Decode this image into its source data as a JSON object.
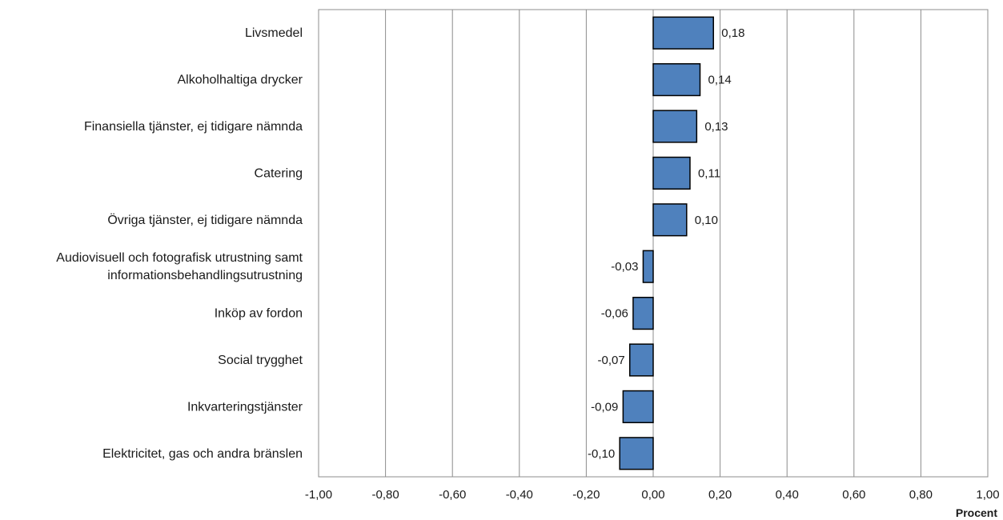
{
  "chart_data": {
    "type": "bar",
    "orientation": "horizontal",
    "categories": [
      "Livsmedel",
      "Alkoholhaltiga drycker",
      "Finansiella tjänster, ej tidigare nämnda",
      "Catering",
      "Övriga tjänster, ej tidigare nämnda",
      "Audiovisuell och fotografisk utrustning samt informationsbehandlingsutrustning",
      "Inköp av fordon",
      "Social trygghet",
      "Inkvarteringstjänster",
      "Elektricitet, gas och andra bränslen"
    ],
    "category_lines": [
      [
        "Livsmedel"
      ],
      [
        "Alkoholhaltiga drycker"
      ],
      [
        "Finansiella tjänster, ej tidigare nämnda"
      ],
      [
        "Catering"
      ],
      [
        "Övriga tjänster, ej tidigare nämnda"
      ],
      [
        "Audiovisuell och fotografisk utrustning samt",
        "informationsbehandlingsutrustning"
      ],
      [
        "Inköp av fordon"
      ],
      [
        "Social trygghet"
      ],
      [
        "Inkvarteringstjänster"
      ],
      [
        "Elektricitet, gas och andra bränslen"
      ]
    ],
    "values": [
      0.18,
      0.14,
      0.13,
      0.11,
      0.1,
      -0.03,
      -0.06,
      -0.07,
      -0.09,
      -0.1
    ],
    "data_labels": [
      "0,18",
      "0,14",
      "0,13",
      "0,11",
      "0,10",
      "-0,03",
      "-0,06",
      "-0,07",
      "-0,09",
      "-0,10"
    ],
    "xlim": [
      -1.0,
      1.0
    ],
    "xticks": [
      -1.0,
      -0.8,
      -0.6,
      -0.4,
      -0.2,
      0.0,
      0.2,
      0.4,
      0.6,
      0.8,
      1.0
    ],
    "xtick_labels": [
      "-1,00",
      "-0,80",
      "-0,60",
      "-0,40",
      "-0,20",
      "0,00",
      "0,20",
      "0,40",
      "0,60",
      "0,80",
      "1,00"
    ],
    "xlabel": "Procent",
    "grid": "vertical",
    "legend": "none",
    "colors": {
      "bar": "#4f81bd",
      "bar_border": "#000000",
      "grid": "#8c8c8c",
      "frame": "#8c8c8c"
    }
  }
}
